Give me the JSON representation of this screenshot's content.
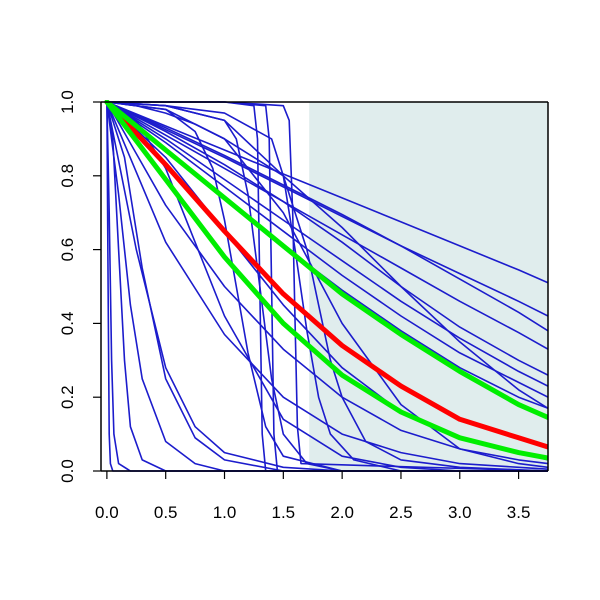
{
  "chart_data": {
    "type": "line",
    "title": "",
    "xlabel": "",
    "ylabel": "",
    "xlim": [
      -0.05,
      3.75
    ],
    "ylim": [
      0.0,
      1.0
    ],
    "x_ticks": [
      "0.0",
      "0.5",
      "1.0",
      "1.5",
      "2.0",
      "2.5",
      "3.0",
      "3.5"
    ],
    "y_ticks": [
      "0.0",
      "0.2",
      "0.4",
      "0.6",
      "0.8",
      "1.0"
    ],
    "shaded_region": {
      "x_from": 1.72,
      "x_to": 3.75,
      "color": "#e0eded"
    },
    "grid": false,
    "legend": "none",
    "colors": {
      "blue": "#1c1ccc",
      "red": "#ff0000",
      "green": "#00ee00",
      "axis": "#000000"
    },
    "series": [
      {
        "color": "#1c1ccc",
        "weight": "thin",
        "x": [
          0,
          0.5,
          1,
          1.5,
          2,
          2.5,
          3,
          3.5,
          3.75
        ],
        "y": [
          1,
          0.935,
          0.87,
          0.805,
          0.74,
          0.675,
          0.61,
          0.545,
          0.51
        ]
      },
      {
        "color": "#1c1ccc",
        "weight": "thin",
        "x": [
          0,
          0.5,
          1,
          1.5,
          2,
          2.5,
          3,
          3.5,
          3.75
        ],
        "y": [
          1,
          0.925,
          0.85,
          0.77,
          0.69,
          0.61,
          0.535,
          0.46,
          0.42
        ]
      },
      {
        "color": "#1c1ccc",
        "weight": "thin",
        "x": [
          0,
          0.5,
          1,
          1.5,
          2,
          2.5,
          3,
          3.5,
          3.75
        ],
        "y": [
          1,
          0.93,
          0.855,
          0.775,
          0.695,
          0.61,
          0.52,
          0.43,
          0.38
        ]
      },
      {
        "color": "#1c1ccc",
        "weight": "thin",
        "x": [
          0,
          0.5,
          1,
          1.5,
          2,
          2.5,
          3,
          3.5,
          3.75
        ],
        "y": [
          1,
          0.91,
          0.82,
          0.73,
          0.64,
          0.55,
          0.46,
          0.375,
          0.33
        ]
      },
      {
        "color": "#1c1ccc",
        "weight": "thin",
        "x": [
          0,
          0.5,
          1,
          1.5,
          2,
          2.5,
          3,
          3.5,
          3.75
        ],
        "y": [
          1,
          0.92,
          0.83,
          0.73,
          0.62,
          0.5,
          0.39,
          0.3,
          0.26
        ]
      },
      {
        "color": "#1c1ccc",
        "weight": "thin",
        "x": [
          0,
          0.5,
          1,
          1.5,
          2,
          2.5,
          3,
          3.5,
          3.75
        ],
        "y": [
          1,
          0.9,
          0.79,
          0.68,
          0.57,
          0.46,
          0.36,
          0.27,
          0.23
        ]
      },
      {
        "color": "#1c1ccc",
        "weight": "thin",
        "x": [
          0,
          0.5,
          1,
          1.5,
          2,
          2.5,
          3,
          3.5,
          3.75
        ],
        "y": [
          1,
          0.89,
          0.77,
          0.65,
          0.53,
          0.42,
          0.32,
          0.24,
          0.2
        ]
      },
      {
        "color": "#1c1ccc",
        "weight": "thin",
        "x": [
          0,
          0.5,
          1,
          1.5,
          2,
          2.5,
          3,
          3.5,
          3.75
        ],
        "y": [
          1,
          0.87,
          0.74,
          0.61,
          0.49,
          0.38,
          0.28,
          0.2,
          0.17
        ]
      },
      {
        "color": "#1c1ccc",
        "weight": "thin",
        "x": [
          0,
          0.25,
          0.5,
          0.75,
          1,
          1.5,
          2,
          2.5,
          3,
          3.5,
          3.75
        ],
        "y": [
          1,
          0.99,
          0.97,
          0.94,
          0.9,
          0.8,
          0.66,
          0.5,
          0.35,
          0.22,
          0.17
        ]
      },
      {
        "color": "#1c1ccc",
        "weight": "thin",
        "x": [
          0,
          0.5,
          1,
          1.5,
          2,
          2.5,
          3,
          3.5,
          3.75
        ],
        "y": [
          1,
          0.72,
          0.5,
          0.33,
          0.2,
          0.11,
          0.06,
          0.03,
          0.02
        ]
      },
      {
        "color": "#1c1ccc",
        "weight": "thin",
        "x": [
          0,
          0.5,
          1,
          1.5,
          2,
          2.5,
          3,
          3.5,
          3.75
        ],
        "y": [
          1,
          0.62,
          0.37,
          0.2,
          0.1,
          0.05,
          0.02,
          0.01,
          0.005
        ]
      },
      {
        "color": "#1c1ccc",
        "weight": "thin",
        "x": [
          0,
          0.25,
          0.5,
          0.75,
          1,
          1.5,
          2,
          2.5,
          3,
          3.75
        ],
        "y": [
          1,
          0.95,
          0.82,
          0.62,
          0.42,
          0.14,
          0.04,
          0.01,
          0,
          0
        ]
      },
      {
        "color": "#1c1ccc",
        "weight": "thin",
        "x": [
          0,
          0.25,
          0.5,
          0.75,
          1,
          1.5,
          2,
          2.5,
          3.75
        ],
        "y": [
          1,
          0.6,
          0.28,
          0.12,
          0.05,
          0.01,
          0,
          0,
          0
        ]
      },
      {
        "color": "#1c1ccc",
        "weight": "thin",
        "x": [
          0,
          0.15,
          0.3,
          0.5,
          0.75,
          1,
          1.5,
          2,
          3.75
        ],
        "y": [
          1,
          0.85,
          0.55,
          0.25,
          0.09,
          0.03,
          0,
          0,
          0
        ]
      },
      {
        "color": "#1c1ccc",
        "weight": "thin",
        "x": [
          0,
          0.1,
          0.2,
          0.3,
          0.5,
          0.75,
          1,
          1.5,
          3.75
        ],
        "y": [
          1,
          0.75,
          0.45,
          0.25,
          0.08,
          0.02,
          0,
          0,
          0
        ]
      },
      {
        "color": "#1c1ccc",
        "weight": "thin",
        "x": [
          0,
          0.05,
          0.1,
          0.15,
          0.2,
          0.3,
          0.5,
          1,
          3.75
        ],
        "y": [
          1,
          0.9,
          0.6,
          0.3,
          0.12,
          0.03,
          0,
          0,
          0
        ]
      },
      {
        "color": "#1c1ccc",
        "weight": "thin",
        "x": [
          0,
          0.02,
          0.04,
          0.06,
          0.1,
          0.2,
          3.75
        ],
        "y": [
          1,
          0.7,
          0.3,
          0.1,
          0.02,
          0,
          0
        ]
      },
      {
        "color": "#1c1ccc",
        "weight": "thin",
        "x": [
          0,
          0.01,
          0.02,
          0.03,
          0.05,
          3.75
        ],
        "y": [
          1,
          0.5,
          0.1,
          0.02,
          0,
          0
        ]
      },
      {
        "color": "#1c1ccc",
        "weight": "thin",
        "x": [
          0,
          0.5,
          0.75,
          0.9,
          1.0,
          1.1,
          1.2,
          1.35,
          1.5,
          2,
          3.75
        ],
        "y": [
          1,
          0.98,
          0.92,
          0.82,
          0.68,
          0.5,
          0.32,
          0.12,
          0.04,
          0,
          0
        ]
      },
      {
        "color": "#1c1ccc",
        "weight": "thin",
        "x": [
          0,
          0.5,
          1,
          1.1,
          1.2,
          1.3,
          1.4,
          1.5,
          1.7,
          2,
          3.75
        ],
        "y": [
          1,
          0.99,
          0.95,
          0.9,
          0.75,
          0.5,
          0.25,
          0.1,
          0.02,
          0,
          0
        ]
      },
      {
        "color": "#1c1ccc",
        "weight": "thin",
        "x": [
          0,
          0.5,
          1,
          1.25,
          1.28,
          1.3,
          1.32,
          1.35,
          3.75
        ],
        "y": [
          1,
          1,
          1,
          0.99,
          0.9,
          0.5,
          0.1,
          0,
          0
        ]
      },
      {
        "color": "#1c1ccc",
        "weight": "thin",
        "x": [
          0,
          0.5,
          1,
          1.35,
          1.38,
          1.4,
          1.42,
          1.45,
          3.75
        ],
        "y": [
          1,
          1,
          1,
          0.99,
          0.9,
          0.5,
          0.1,
          0,
          0
        ]
      },
      {
        "color": "#1c1ccc",
        "weight": "thin",
        "x": [
          0,
          0.5,
          1,
          1.5,
          1.55,
          1.58,
          1.6,
          1.62,
          1.65,
          3.75
        ],
        "y": [
          1,
          1,
          1,
          0.99,
          0.95,
          0.7,
          0.4,
          0.12,
          0.02,
          0
        ]
      },
      {
        "color": "#1c1ccc",
        "weight": "thin",
        "x": [
          0,
          0.5,
          1,
          1.4,
          1.5,
          1.6,
          1.7,
          1.8,
          1.9,
          2.1,
          2.5,
          3.75
        ],
        "y": [
          1,
          0.99,
          0.97,
          0.9,
          0.8,
          0.6,
          0.38,
          0.2,
          0.1,
          0.03,
          0,
          0
        ]
      },
      {
        "color": "#1c1ccc",
        "weight": "thin",
        "x": [
          0,
          0.5,
          1,
          1.5,
          1.7,
          1.8,
          1.9,
          2.0,
          2.2,
          2.5,
          3,
          3.75
        ],
        "y": [
          1,
          0.99,
          0.95,
          0.8,
          0.6,
          0.45,
          0.3,
          0.2,
          0.08,
          0.03,
          0.01,
          0
        ]
      },
      {
        "color": "#1c1ccc",
        "weight": "thin",
        "x": [
          0,
          0.5,
          1,
          1.5,
          2,
          2.5,
          3,
          3.5,
          3.75
        ],
        "y": [
          1,
          0.98,
          0.9,
          0.7,
          0.4,
          0.18,
          0.06,
          0.02,
          0.01
        ]
      },
      {
        "color": "#1c1ccc",
        "weight": "thin",
        "x": [
          0,
          0.5,
          1,
          1.5,
          2,
          2.5,
          3,
          3.5,
          3.75
        ],
        "y": [
          1,
          0.85,
          0.65,
          0.45,
          0.28,
          0.16,
          0.09,
          0.05,
          0.03
        ]
      },
      {
        "color": "#ff0000",
        "weight": "thick",
        "x": [
          0,
          0.5,
          1,
          1.5,
          2,
          2.5,
          3,
          3.5,
          3.75
        ],
        "y": [
          1,
          0.83,
          0.65,
          0.48,
          0.34,
          0.23,
          0.14,
          0.09,
          0.065
        ]
      },
      {
        "color": "#00ee00",
        "weight": "thick",
        "x": [
          0,
          0.5,
          1,
          1.5,
          2,
          2.5,
          3,
          3.5,
          3.75
        ],
        "y": [
          1,
          0.87,
          0.74,
          0.61,
          0.48,
          0.37,
          0.27,
          0.18,
          0.145
        ]
      },
      {
        "color": "#00ee00",
        "weight": "thick",
        "x": [
          0,
          0.5,
          1,
          1.5,
          2,
          2.5,
          3,
          3.5,
          3.75
        ],
        "y": [
          1,
          0.79,
          0.58,
          0.4,
          0.26,
          0.16,
          0.09,
          0.05,
          0.035
        ]
      }
    ]
  }
}
